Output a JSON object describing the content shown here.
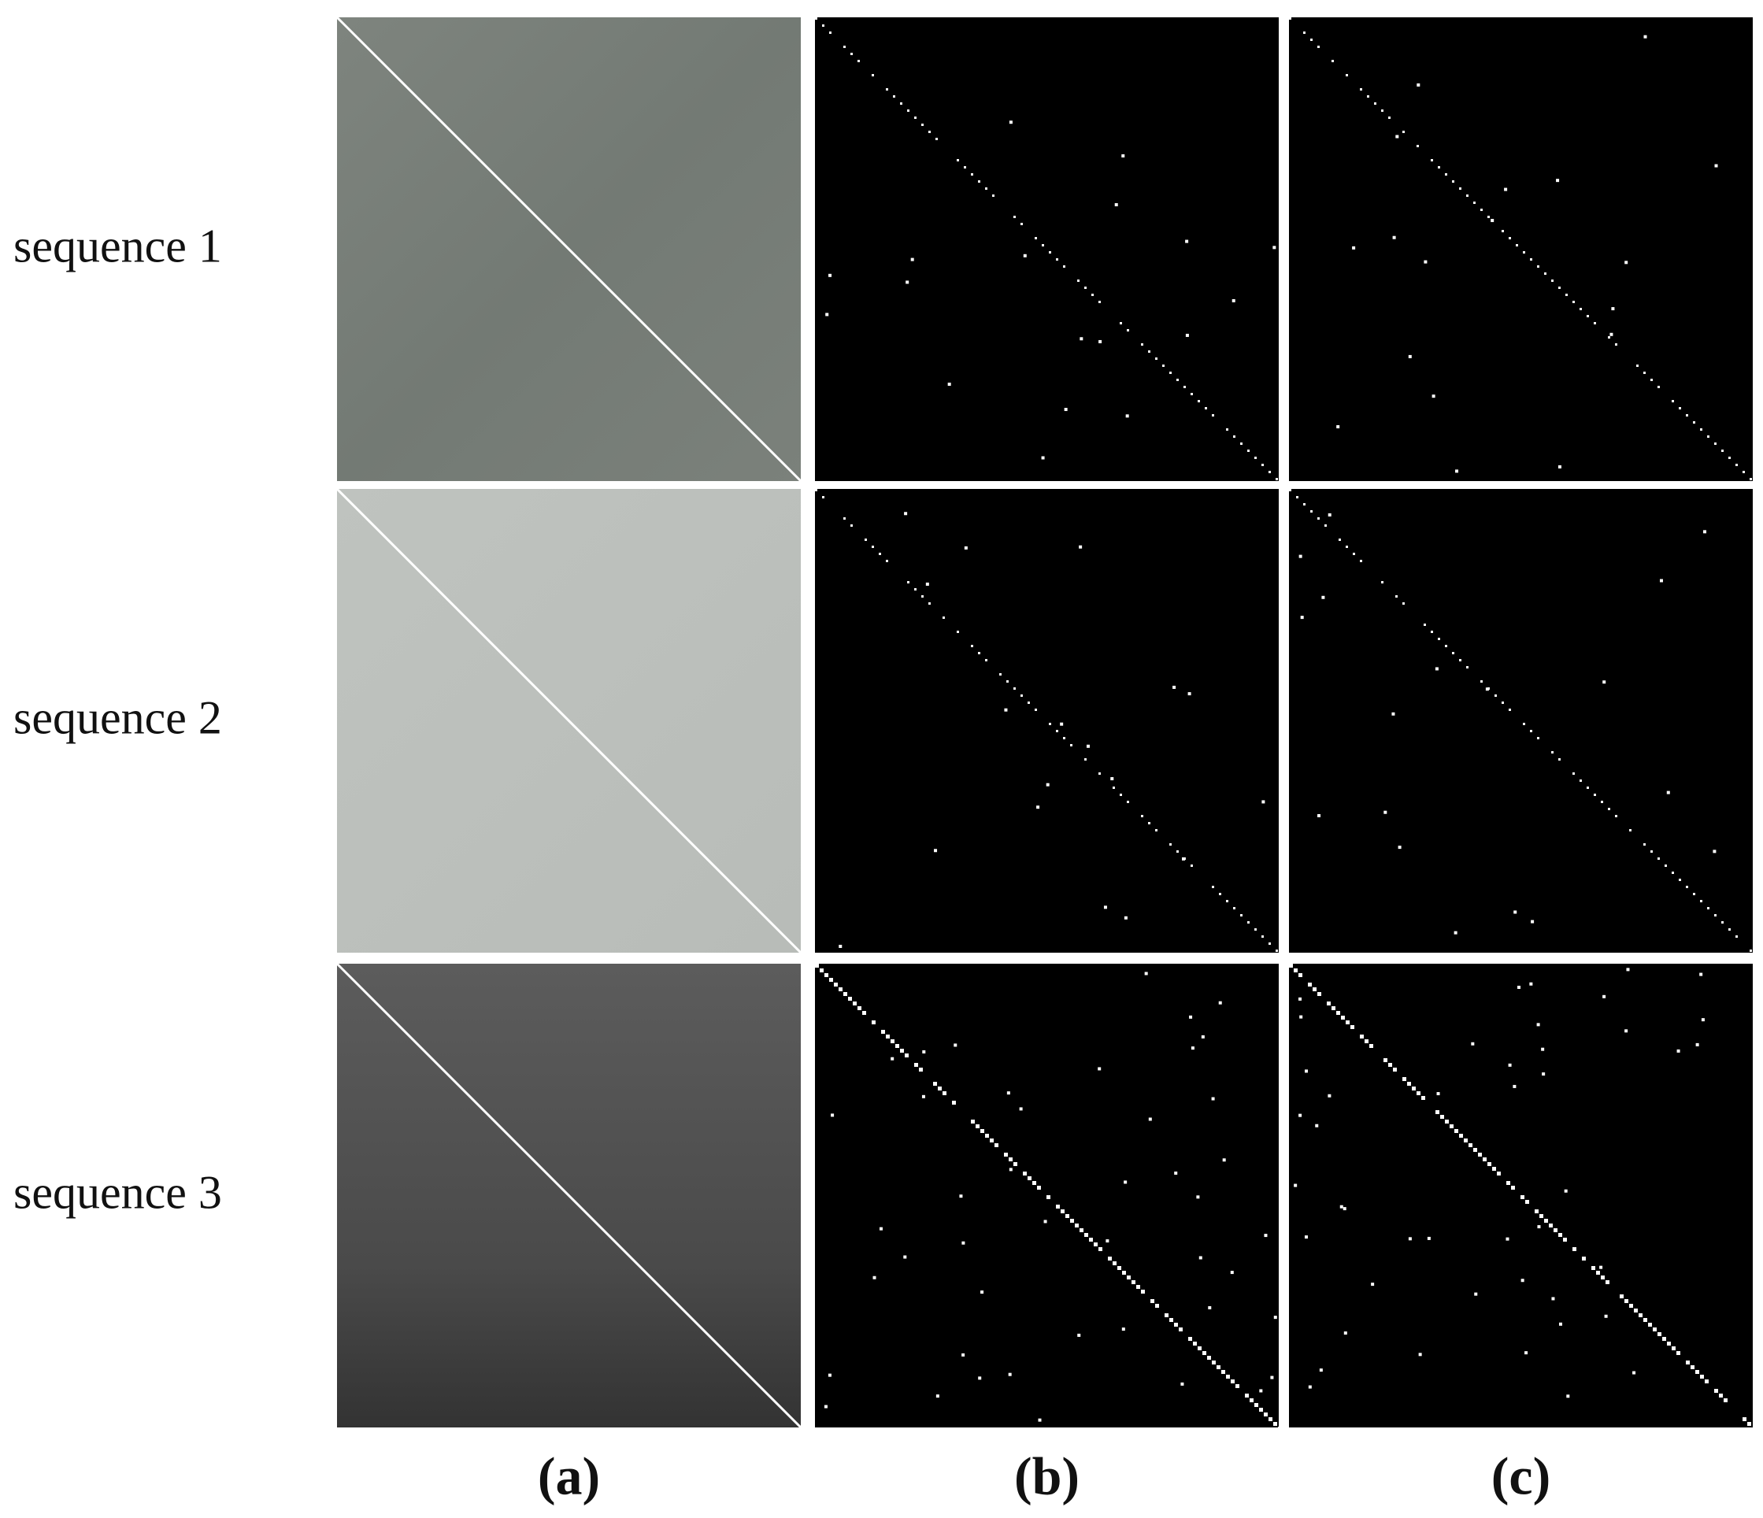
{
  "rows": [
    "sequence 1",
    "sequence 2",
    "sequence 3"
  ],
  "columns": [
    "(a)",
    "(b)",
    "(c)"
  ]
}
